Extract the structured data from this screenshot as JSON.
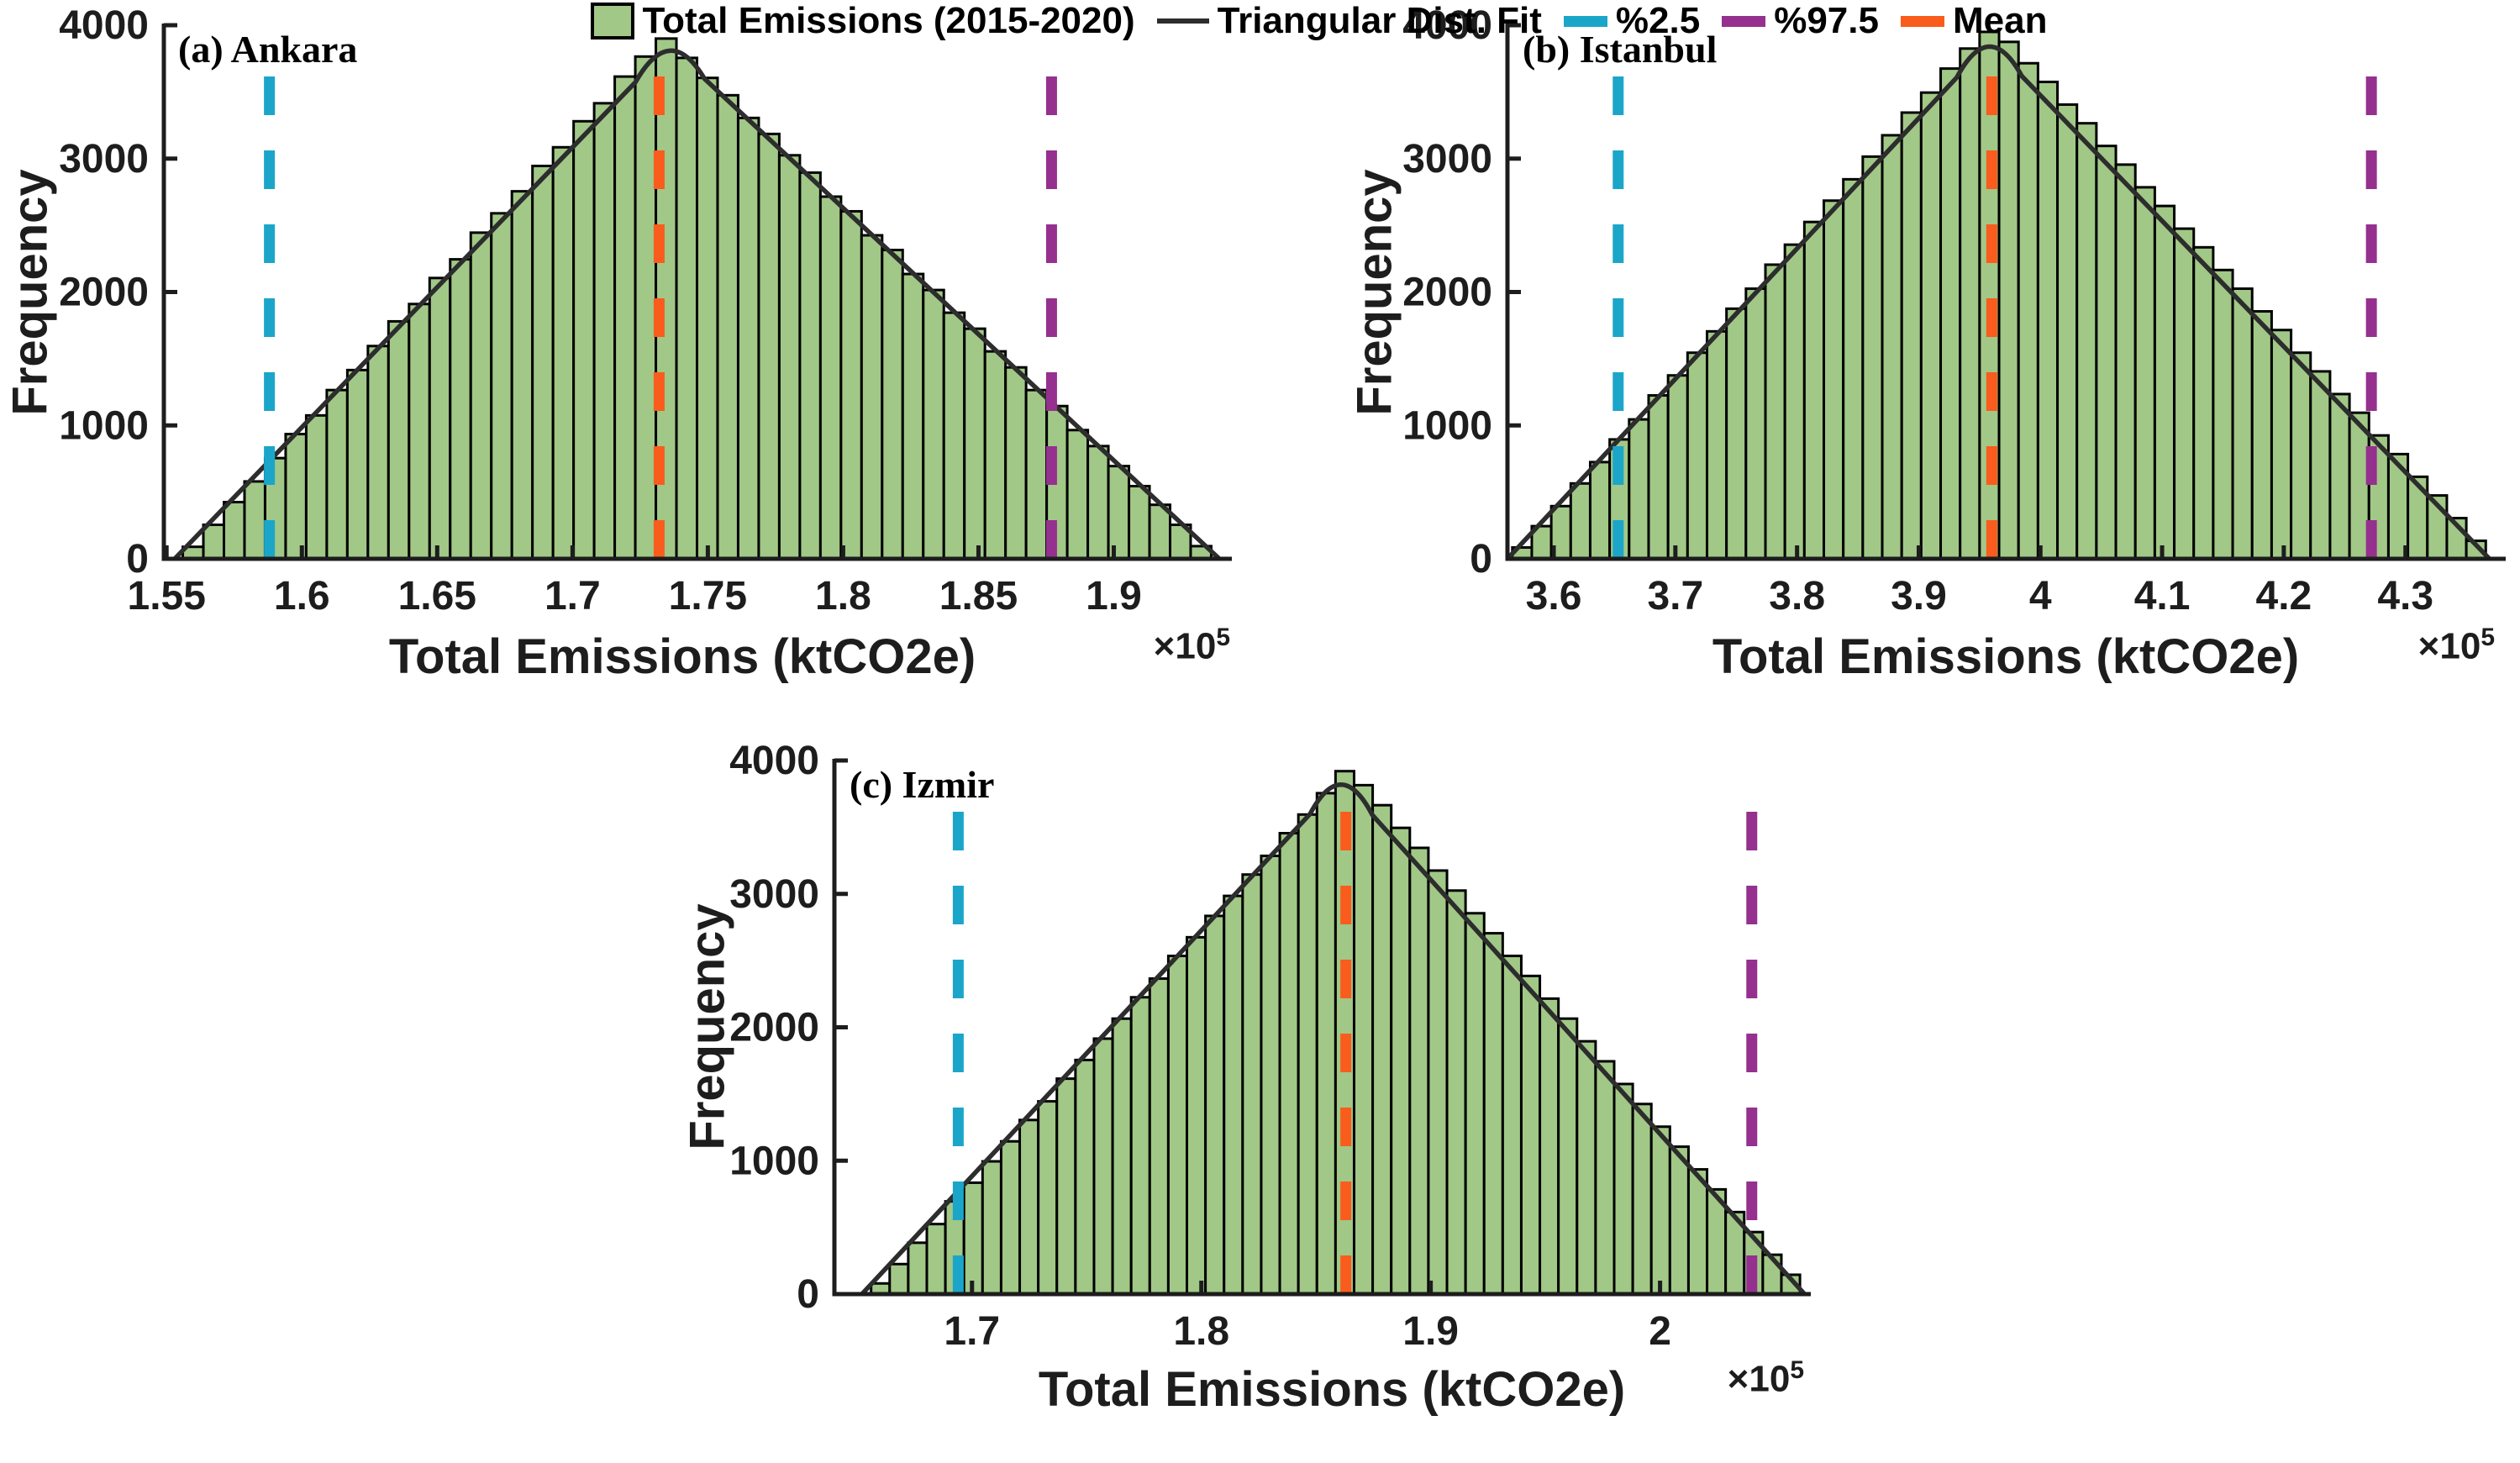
{
  "figure": {
    "background": "#ffffff",
    "text_color": "#1d1d1d",
    "colors": {
      "hist_fill": "#a1c887",
      "hist_edge": "#000000",
      "fit_curve": "#2d2d2d",
      "pct2_5": "#1ba6c9",
      "pct97_5": "#95308f",
      "mean": "#f95c1c",
      "axis": "#1d1d1d"
    }
  },
  "legend": {
    "items": [
      {
        "label": "Total Emissions (2015-2020)",
        "swatch": "box",
        "color": "#a1c887",
        "border": "#000000"
      },
      {
        "label": "Triangular Dist. Fit",
        "swatch": "line",
        "color": "#2d2d2d"
      },
      {
        "label": "%2.5",
        "swatch": "dash",
        "color": "#1ba6c9"
      },
      {
        "label": "%97.5",
        "swatch": "dash",
        "color": "#95308f"
      },
      {
        "label": "Mean",
        "swatch": "dash",
        "color": "#f95c1c"
      }
    ]
  },
  "chart_data": [
    {
      "type": "bar",
      "panel_label": "(a) Ankara",
      "city": "Ankara",
      "xlabel": "Total Emissions (ktCO2e)",
      "ylabel": "Frequency",
      "x_multiplier_label": "×10",
      "x_multiplier_exp": "5",
      "x_units_note": "axis values ×10^5 ktCO2e",
      "xlim": [
        1.549,
        1.943
      ],
      "ylim": [
        0,
        4000
      ],
      "x_ticks": [
        "1.55",
        "1.6",
        "1.65",
        "1.7",
        "1.75",
        "1.8",
        "1.85",
        "1.9"
      ],
      "x_tick_values": [
        1.55,
        1.6,
        1.65,
        1.7,
        1.75,
        1.8,
        1.85,
        1.9
      ],
      "y_ticks": [
        0,
        1000,
        2000,
        3000,
        4000
      ],
      "bin_start": 1.556,
      "bin_width": 0.0076,
      "counts": [
        90,
        255,
        425,
        580,
        755,
        935,
        1075,
        1265,
        1415,
        1595,
        1780,
        1910,
        2105,
        2245,
        2445,
        2590,
        2755,
        2945,
        3085,
        3280,
        3415,
        3615,
        3765,
        3900,
        3755,
        3605,
        3475,
        3305,
        3185,
        3025,
        2895,
        2715,
        2605,
        2425,
        2315,
        2135,
        2015,
        1845,
        1725,
        1555,
        1435,
        1265,
        1145,
        965,
        845,
        695,
        545,
        405,
        255,
        95
      ],
      "fit_triangle": {
        "min": 1.553,
        "mode": 1.736,
        "max": 1.939,
        "peak_freq": 3840
      },
      "lines": {
        "pct2_5": 1.588,
        "mean": 1.732,
        "pct97_5": 1.877
      }
    },
    {
      "type": "bar",
      "panel_label": "(b) Istanbul",
      "city": "Istanbul",
      "xlabel": "Total Emissions (ktCO2e)",
      "ylabel": "Frequency",
      "x_multiplier_label": "×10",
      "x_multiplier_exp": "5",
      "x_units_note": "axis values ×10^5 ktCO2e",
      "xlim": [
        3.562,
        4.381
      ],
      "ylim": [
        0,
        4000
      ],
      "x_ticks": [
        "3.6",
        "3.7",
        "3.8",
        "3.9",
        "4",
        "4.1",
        "4.2",
        "4.3"
      ],
      "x_tick_values": [
        3.6,
        3.7,
        3.8,
        3.9,
        4.0,
        4.1,
        4.2,
        4.3
      ],
      "y_ticks": [
        0,
        1000,
        2000,
        3000,
        4000
      ],
      "bin_start": 3.566,
      "bin_width": 0.016,
      "counts": [
        85,
        245,
        395,
        565,
        725,
        895,
        1045,
        1225,
        1375,
        1545,
        1705,
        1875,
        2025,
        2205,
        2355,
        2525,
        2685,
        2845,
        3015,
        3175,
        3345,
        3495,
        3675,
        3825,
        3950,
        3875,
        3715,
        3575,
        3405,
        3265,
        3095,
        2955,
        2785,
        2645,
        2475,
        2335,
        2165,
        2025,
        1855,
        1715,
        1545,
        1405,
        1235,
        1095,
        925,
        785,
        615,
        475,
        305,
        135
      ],
      "fit_triangle": {
        "min": 3.562,
        "mode": 3.958,
        "max": 4.369,
        "peak_freq": 3870
      },
      "lines": {
        "pct2_5": 3.653,
        "mean": 3.96,
        "pct97_5": 4.272
      }
    },
    {
      "type": "bar",
      "panel_label": "(c) Izmir",
      "city": "Izmir",
      "xlabel": "Total Emissions (ktCO2e)",
      "ylabel": "Frequency",
      "x_multiplier_label": "×10",
      "x_multiplier_exp": "5",
      "x_units_note": "axis values ×10^5 ktCO2e",
      "xlim": [
        1.64,
        2.065
      ],
      "ylim": [
        0,
        4000
      ],
      "x_ticks": [
        "1.7",
        "1.8",
        "1.9",
        "2"
      ],
      "x_tick_values": [
        1.7,
        1.8,
        1.9,
        2.0
      ],
      "y_ticks": [
        0,
        1000,
        2000,
        3000,
        4000
      ],
      "bin_start": 1.656,
      "bin_width": 0.0081,
      "counts": [
        80,
        225,
        385,
        525,
        695,
        835,
        995,
        1145,
        1305,
        1445,
        1615,
        1755,
        1915,
        2065,
        2225,
        2365,
        2535,
        2675,
        2835,
        2985,
        3145,
        3285,
        3455,
        3595,
        3755,
        3920,
        3815,
        3665,
        3495,
        3345,
        3175,
        3025,
        2855,
        2705,
        2535,
        2385,
        2215,
        2065,
        1895,
        1745,
        1575,
        1425,
        1255,
        1105,
        935,
        785,
        615,
        465,
        295,
        145
      ],
      "fit_triangle": {
        "min": 1.652,
        "mode": 1.861,
        "max": 2.063,
        "peak_freq": 3850
      },
      "lines": {
        "pct2_5": 1.694,
        "mean": 1.863,
        "pct97_5": 2.04
      }
    }
  ]
}
